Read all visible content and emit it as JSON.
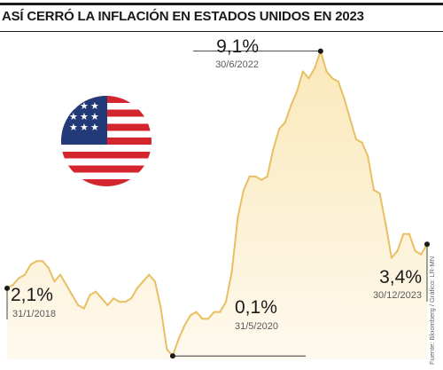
{
  "title": "ASÍ CERRÓ LA INFLACIÓN EN ESTADOS UNIDOS EN 2023",
  "source": "Fuente: Bloomberg / Gráfico: LR-MN",
  "flag_icon": "us-flag-icon",
  "colors": {
    "fill": "#fbe8b9",
    "line": "#e8c063",
    "marker": "#1a1a1a",
    "text": "#1a1a1a",
    "date_text": "#5a5a5a",
    "flag_red": "#d4252f",
    "flag_blue": "#233a78"
  },
  "annotations": [
    {
      "value": "2,1%",
      "date": "31/1/2018"
    },
    {
      "value": "0,1%",
      "date": "31/5/2020"
    },
    {
      "value": "9,1%",
      "date": "30/6/2022"
    },
    {
      "value": "3,4%",
      "date": "30/12/2023"
    }
  ],
  "chart_data": {
    "type": "area",
    "title": "ASÍ CERRÓ LA INFLACIÓN EN ESTADOS UNIDOS EN 2023",
    "xlabel": "",
    "ylabel": "",
    "ylim": [
      0,
      9.3
    ],
    "grid": false,
    "x": [
      "2018-01",
      "2018-02",
      "2018-03",
      "2018-04",
      "2018-05",
      "2018-06",
      "2018-07",
      "2018-08",
      "2018-09",
      "2018-10",
      "2018-11",
      "2018-12",
      "2019-01",
      "2019-02",
      "2019-03",
      "2019-04",
      "2019-05",
      "2019-06",
      "2019-07",
      "2019-08",
      "2019-09",
      "2019-10",
      "2019-11",
      "2019-12",
      "2020-01",
      "2020-02",
      "2020-03",
      "2020-04",
      "2020-05",
      "2020-06",
      "2020-07",
      "2020-08",
      "2020-09",
      "2020-10",
      "2020-11",
      "2020-12",
      "2021-01",
      "2021-02",
      "2021-03",
      "2021-04",
      "2021-05",
      "2021-06",
      "2021-07",
      "2021-08",
      "2021-09",
      "2021-10",
      "2021-11",
      "2021-12",
      "2022-01",
      "2022-02",
      "2022-03",
      "2022-04",
      "2022-05",
      "2022-06",
      "2022-07",
      "2022-08",
      "2022-09",
      "2022-10",
      "2022-11",
      "2022-12",
      "2023-01",
      "2023-02",
      "2023-03",
      "2023-04",
      "2023-05",
      "2023-06",
      "2023-07",
      "2023-08",
      "2023-09",
      "2023-10",
      "2023-11",
      "2023-12"
    ],
    "values": [
      2.1,
      2.2,
      2.4,
      2.5,
      2.8,
      2.9,
      2.9,
      2.7,
      2.3,
      2.5,
      2.2,
      1.9,
      1.6,
      1.5,
      1.9,
      2.0,
      1.8,
      1.6,
      1.8,
      1.7,
      1.7,
      1.8,
      2.1,
      2.3,
      2.5,
      2.3,
      1.5,
      0.3,
      0.1,
      0.6,
      1.0,
      1.3,
      1.4,
      1.2,
      1.2,
      1.4,
      1.4,
      1.7,
      2.6,
      4.2,
      5.0,
      5.4,
      5.4,
      5.3,
      5.4,
      6.2,
      6.8,
      7.0,
      7.5,
      7.9,
      8.5,
      8.3,
      8.6,
      9.1,
      8.5,
      8.3,
      8.2,
      7.7,
      7.1,
      6.5,
      6.4,
      6.0,
      5.0,
      4.9,
      4.0,
      3.0,
      3.2,
      3.7,
      3.7,
      3.2,
      3.1,
      3.4
    ]
  }
}
